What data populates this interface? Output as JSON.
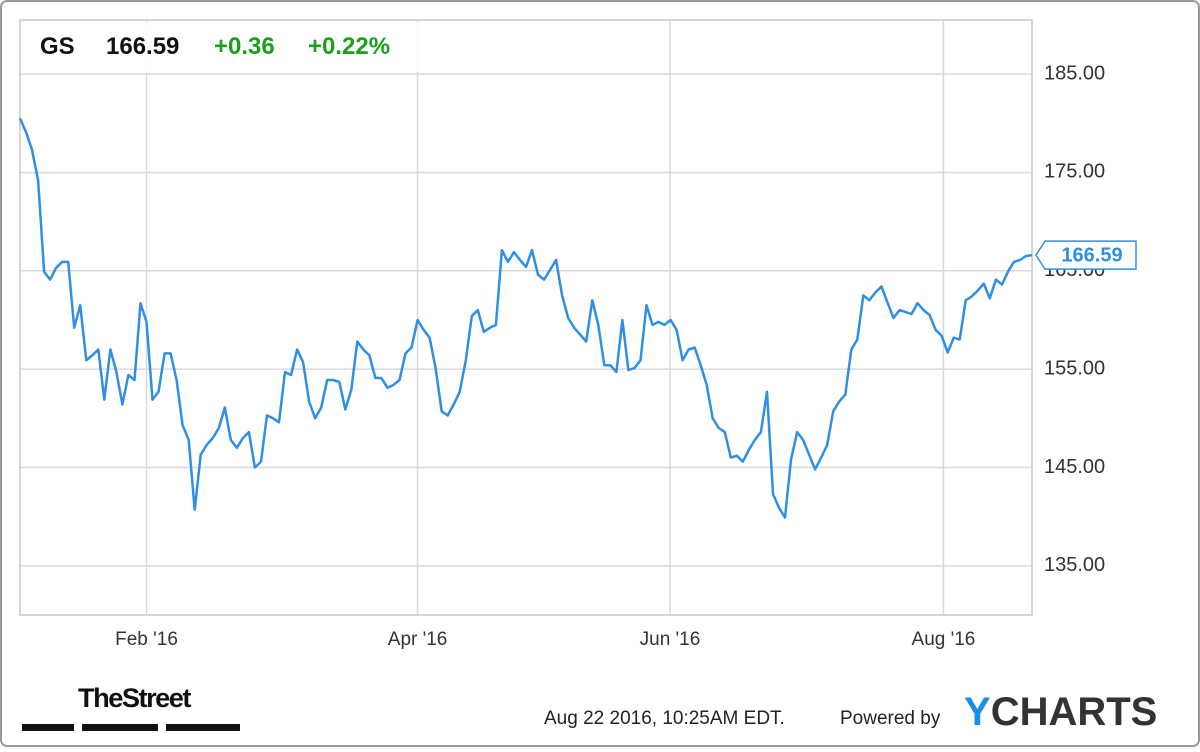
{
  "chart_data": {
    "type": "line",
    "symbol": "GS",
    "price": 166.59,
    "change": "+0.36",
    "change_percent": "+0.22%",
    "color": "#2f8fe6",
    "values": [
      180.5,
      179.1,
      177.3,
      174.2,
      164.9,
      164.1,
      165.3,
      165.9,
      165.9,
      159.2,
      161.5,
      155.9,
      156.4,
      157.0,
      151.9,
      157.0,
      154.7,
      151.4,
      154.4,
      153.9,
      161.7,
      159.8,
      151.9,
      152.7,
      156.6,
      156.6,
      153.9,
      149.3,
      147.8,
      140.7,
      146.3,
      147.3,
      148.0,
      149.0,
      151.1,
      147.8,
      147.0,
      148.0,
      148.6,
      145.0,
      145.6,
      150.3,
      150.0,
      149.6,
      154.7,
      154.4,
      157.0,
      155.7,
      151.7,
      150.0,
      151.1,
      153.9,
      153.9,
      153.7,
      150.9,
      152.9,
      157.8,
      157.0,
      156.4,
      154.1,
      154.1,
      153.1,
      153.4,
      153.9,
      156.6,
      157.2,
      160.0,
      159.0,
      158.2,
      155.1,
      150.7,
      150.3,
      151.4,
      152.7,
      155.9,
      160.4,
      161.0,
      158.8,
      159.2,
      159.5,
      167.1,
      165.9,
      166.9,
      166.1,
      165.4,
      167.1,
      164.6,
      164.1,
      165.1,
      166.1,
      162.5,
      160.2,
      159.2,
      158.5,
      157.8,
      162.0,
      159.5,
      155.4,
      155.4,
      154.7,
      160.0,
      154.9,
      155.1,
      155.9,
      161.5,
      159.5,
      159.8,
      159.5,
      160.0,
      159.0,
      155.9,
      157.0,
      157.2,
      155.4,
      153.4,
      150.0,
      149.0,
      148.6,
      146.0,
      146.2,
      145.6,
      146.8,
      147.8,
      148.6,
      152.7,
      142.3,
      140.9,
      139.9,
      145.8,
      148.6,
      147.8,
      146.3,
      144.8,
      146.0,
      147.3,
      150.7,
      151.7,
      152.4,
      157.0,
      158.0,
      162.5,
      162.0,
      162.8,
      163.4,
      161.8,
      160.2,
      161.0,
      160.8,
      160.6,
      161.7,
      161.0,
      160.5,
      159.0,
      158.4,
      156.7,
      158.2,
      158.0,
      162.0,
      162.4,
      163.0,
      163.7,
      162.2,
      164.1,
      163.6,
      164.9,
      165.9,
      166.1,
      166.5,
      166.59
    ],
    "xlim": [
      0,
      168
    ],
    "xticks": [
      {
        "value": 21,
        "label": "Feb '16"
      },
      {
        "value": 66,
        "label": "Apr '16"
      },
      {
        "value": 107.9,
        "label": "Jun '16"
      },
      {
        "value": 153.3,
        "label": "Aug '16"
      }
    ],
    "ylim": [
      130,
      190.5
    ],
    "yticks": [
      {
        "value": 135,
        "label": "135.00"
      },
      {
        "value": 145,
        "label": "145.00"
      },
      {
        "value": 155,
        "label": "155.00"
      },
      {
        "value": 165,
        "label": "165.00"
      },
      {
        "value": 175,
        "label": "175.00"
      },
      {
        "value": 185,
        "label": "185.00"
      }
    ],
    "grid": true
  },
  "footer": {
    "source_logo": "TheStreet",
    "timestamp": "Aug 22 2016, 10:25AM EDT.",
    "powered_by": "Powered by",
    "brand_initial": "Y",
    "brand_rest": "CHARTS"
  }
}
